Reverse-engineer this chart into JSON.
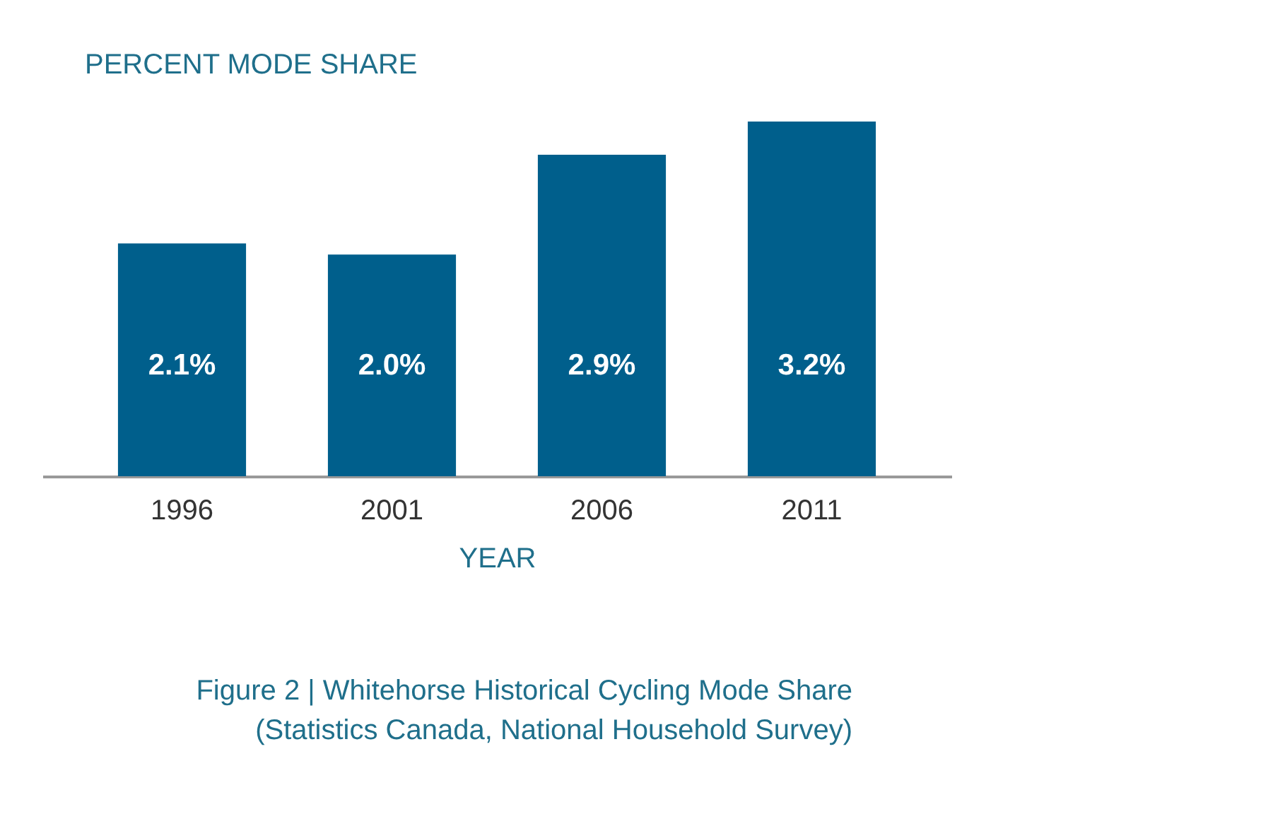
{
  "chart_data": {
    "type": "bar",
    "ylabel": "PERCENT MODE SHARE",
    "xlabel": "YEAR",
    "categories": [
      "1996",
      "2001",
      "2006",
      "2011"
    ],
    "values": [
      2.1,
      2.0,
      2.9,
      3.2
    ],
    "color": "#005f8c",
    "value_labels": [
      "2.1%",
      "2.0%",
      "2.9%",
      "3.2%"
    ],
    "annotations": [
      "Figure 2 | Whitehorse Historical Cycling Mode Share",
      "(Statistics Canada, National Household Survey)"
    ],
    "grid": false
  }
}
